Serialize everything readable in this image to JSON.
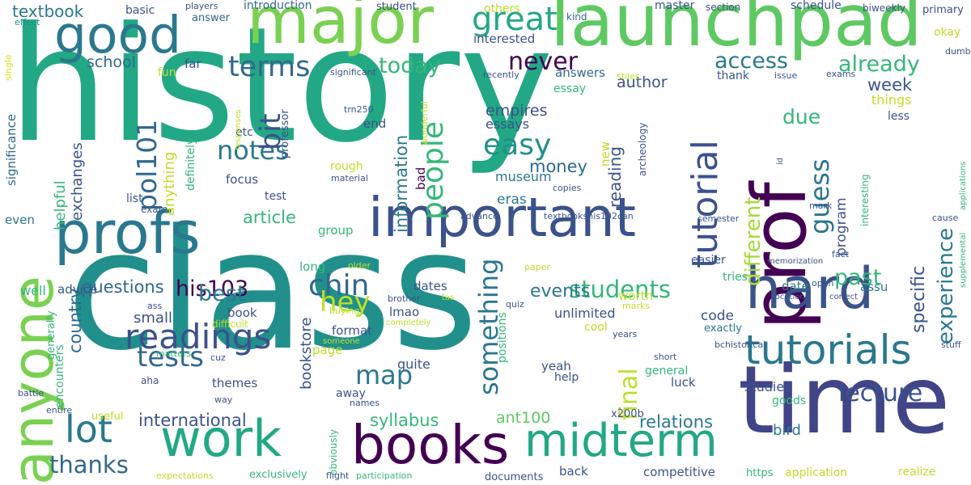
{
  "wordcloud": {
    "words": [
      {
        "text": "history",
        "color": "#22a884"
      },
      {
        "text": "class",
        "color": "#21908c"
      },
      {
        "text": "time",
        "color": "#414487"
      },
      {
        "text": "launchpad",
        "color": "#5ec962"
      },
      {
        "text": "major",
        "color": "#7ad151"
      },
      {
        "text": "prof",
        "color": "#440154"
      },
      {
        "text": "profs",
        "color": "#2a788e"
      },
      {
        "text": "important",
        "color": "#3b528b"
      },
      {
        "text": "good",
        "color": "#2a788e"
      },
      {
        "text": "anyone",
        "color": "#7ad151"
      },
      {
        "text": "hard",
        "color": "#3b528b"
      },
      {
        "text": "work",
        "color": "#22a884"
      },
      {
        "text": "books",
        "color": "#440154"
      },
      {
        "text": "midterm",
        "color": "#22a884"
      },
      {
        "text": "tutorials",
        "color": "#2a788e"
      },
      {
        "text": "readings",
        "color": "#3b528b"
      },
      {
        "text": "lot",
        "color": "#2a788e"
      },
      {
        "text": "tutorial",
        "color": "#3b528b"
      },
      {
        "text": "great",
        "color": "#22a884"
      },
      {
        "text": "terms",
        "color": "#31688e"
      },
      {
        "text": "never",
        "color": "#440154"
      },
      {
        "text": "notes",
        "color": "#2a788e"
      },
      {
        "text": "easy",
        "color": "#21908c"
      },
      {
        "text": "people",
        "color": "#35b779"
      },
      {
        "text": "chin",
        "color": "#31688e"
      },
      {
        "text": "hey",
        "color": "#bddf26"
      },
      {
        "text": "tests",
        "color": "#31688e"
      },
      {
        "text": "thanks",
        "color": "#31688e"
      },
      {
        "text": "lecture",
        "color": "#3b528b"
      },
      {
        "text": "final",
        "color": "#bddf26"
      },
      {
        "text": "students",
        "color": "#35b779"
      },
      {
        "text": "something",
        "color": "#2a788e"
      },
      {
        "text": "access",
        "color": "#2a788e"
      },
      {
        "text": "already",
        "color": "#35b779"
      },
      {
        "text": "guess",
        "color": "#2a788e"
      },
      {
        "text": "his103",
        "color": "#440154"
      },
      {
        "text": "pol101",
        "color": "#31688e"
      },
      {
        "text": "experience",
        "color": "#2a788e"
      },
      {
        "text": "bit",
        "color": "#3b528b"
      },
      {
        "text": "today",
        "color": "#35b779"
      },
      {
        "text": "textbook",
        "color": "#2a788e"
      },
      {
        "text": "map",
        "color": "#2a788e"
      },
      {
        "text": "past",
        "color": "#35b779"
      },
      {
        "text": "best",
        "color": "#2a788e"
      },
      {
        "text": "different",
        "color": "#a5db36"
      },
      {
        "text": "international",
        "color": "#3b528b"
      },
      {
        "text": "specific",
        "color": "#3b528b"
      },
      {
        "text": "due",
        "color": "#35b779"
      },
      {
        "text": "information",
        "color": "#2a788e"
      },
      {
        "text": "questions",
        "color": "#31688e"
      },
      {
        "text": "country",
        "color": "#31688e"
      },
      {
        "text": "events",
        "color": "#2a788e"
      },
      {
        "text": "syllabus",
        "color": "#35b779"
      },
      {
        "text": "relations",
        "color": "#2a788e"
      },
      {
        "text": "article",
        "color": "#35b779"
      },
      {
        "text": "week",
        "color": "#3b528b"
      },
      {
        "text": "reading",
        "color": "#3b528b"
      },
      {
        "text": "money",
        "color": "#31688e"
      },
      {
        "text": "empires",
        "color": "#3b528b"
      },
      {
        "text": "author",
        "color": "#3b528b"
      },
      {
        "text": "school",
        "color": "#31688e"
      },
      {
        "text": "exchanges",
        "color": "#3b528b"
      },
      {
        "text": "helpful",
        "color": "#35b779"
      },
      {
        "text": "anything",
        "color": "#bddf26"
      },
      {
        "text": "program",
        "color": "#3b528b"
      },
      {
        "text": "small",
        "color": "#3b528b"
      },
      {
        "text": "code",
        "color": "#3b528b"
      },
      {
        "text": "bookstore",
        "color": "#3b528b"
      },
      {
        "text": "ant100",
        "color": "#5ec962"
      },
      {
        "text": "bird",
        "color": "#2a788e"
      },
      {
        "text": "unlimited",
        "color": "#3b528b"
      },
      {
        "text": "answers",
        "color": "#31688e"
      },
      {
        "text": "museum",
        "color": "#2a788e"
      },
      {
        "text": "interested",
        "color": "#3b528b"
      },
      {
        "text": "introduction",
        "color": "#31688e"
      },
      {
        "text": "basic",
        "color": "#3b528b"
      },
      {
        "text": "answer",
        "color": "#31688e"
      },
      {
        "text": "master",
        "color": "#3b528b"
      },
      {
        "text": "schedule",
        "color": "#3b528b"
      },
      {
        "text": "biweekly",
        "color": "#3b528b"
      },
      {
        "text": "primary",
        "color": "#3b528b"
      },
      {
        "text": "okay",
        "color": "#bddf26"
      },
      {
        "text": "others",
        "color": "#bddf26"
      },
      {
        "text": "student",
        "color": "#3b528b"
      },
      {
        "text": "section",
        "color": "#3b528b"
      },
      {
        "text": "kind",
        "color": "#31688e"
      },
      {
        "text": "players",
        "color": "#3b528b"
      },
      {
        "text": "effect",
        "color": "#21908c"
      },
      {
        "text": "single",
        "color": "#d8e219"
      },
      {
        "text": "significance",
        "color": "#31688e"
      },
      {
        "text": "fun",
        "color": "#bddf26"
      },
      {
        "text": "far",
        "color": "#3b528b"
      },
      {
        "text": "significant",
        "color": "#3b528b"
      },
      {
        "text": "recently",
        "color": "#3b528b"
      },
      {
        "text": "essay",
        "color": "#35b779"
      },
      {
        "text": "stiles",
        "color": "#bddf26"
      },
      {
        "text": "issue",
        "color": "#3b528b"
      },
      {
        "text": "exams",
        "color": "#3b528b"
      },
      {
        "text": "thank",
        "color": "#3b528b"
      },
      {
        "text": "etc",
        "color": "#3b528b"
      },
      {
        "text": "dumb",
        "color": "#3b528b"
      },
      {
        "text": "things",
        "color": "#bddf26"
      },
      {
        "text": "less",
        "color": "#3b528b"
      },
      {
        "text": "essays",
        "color": "#3b528b"
      },
      {
        "text": "end",
        "color": "#3b528b"
      },
      {
        "text": "trn250",
        "color": "#3b528b"
      },
      {
        "text": "wonderful",
        "color": "#bddf26"
      },
      {
        "text": "professor",
        "color": "#3b528b"
      },
      {
        "text": "responses",
        "color": "#bddf26"
      },
      {
        "text": "definitely",
        "color": "#35b779"
      },
      {
        "text": "focus",
        "color": "#3b528b"
      },
      {
        "text": "material",
        "color": "#3b528b"
      },
      {
        "text": "rough",
        "color": "#bddf26"
      },
      {
        "text": "new",
        "color": "#bddf26"
      },
      {
        "text": "archeology",
        "color": "#3b528b"
      },
      {
        "text": "id",
        "color": "#3b528b"
      },
      {
        "text": "bad",
        "color": "#440154"
      },
      {
        "text": "copies",
        "color": "#3b528b"
      },
      {
        "text": "test",
        "color": "#3b528b"
      },
      {
        "text": "list",
        "color": "#3b528b"
      },
      {
        "text": "exam",
        "color": "#3b528b"
      },
      {
        "text": "eras",
        "color": "#2a788e"
      },
      {
        "text": "advance",
        "color": "#3b528b"
      },
      {
        "text": "textbookshis102can",
        "color": "#3b528b"
      },
      {
        "text": "mark",
        "color": "#3b528b"
      },
      {
        "text": "semester",
        "color": "#3b528b"
      },
      {
        "text": "interesting",
        "color": "#35b779"
      },
      {
        "text": "cause",
        "color": "#3b528b"
      },
      {
        "text": "supplemental",
        "color": "#35b779"
      },
      {
        "text": "applications",
        "color": "#35b779"
      },
      {
        "text": "even",
        "color": "#2a788e"
      },
      {
        "text": "group",
        "color": "#35b779"
      },
      {
        "text": "long",
        "color": "#35b779"
      },
      {
        "text": "older",
        "color": "#bddf26"
      },
      {
        "text": "paper",
        "color": "#bddf26"
      },
      {
        "text": "easier",
        "color": "#3b528b"
      },
      {
        "text": "tries",
        "color": "#35b779"
      },
      {
        "text": "fact",
        "color": "#3b528b"
      },
      {
        "text": "memorization",
        "color": "#3b528b"
      },
      {
        "text": "dates",
        "color": "#3b528b"
      },
      {
        "text": "open",
        "color": "#3b528b"
      },
      {
        "text": "well",
        "color": "#35b779"
      },
      {
        "text": "advice",
        "color": "#3b528b"
      },
      {
        "text": "brother",
        "color": "#3b528b"
      },
      {
        "text": "tas",
        "color": "#bddf26"
      },
      {
        "text": "generally",
        "color": "#35b779"
      },
      {
        "text": "ass",
        "color": "#3b528b"
      },
      {
        "text": "buying",
        "color": "#bddf26"
      },
      {
        "text": "quiz",
        "color": "#3b528b"
      },
      {
        "text": "marks",
        "color": "#bddf26"
      },
      {
        "text": "date",
        "color": "#2a788e"
      },
      {
        "text": "assu",
        "color": "#2a788e"
      },
      {
        "text": "location",
        "color": "#3b528b"
      },
      {
        "text": "correct",
        "color": "#3b528b"
      },
      {
        "text": "worth",
        "color": "#bddf26"
      },
      {
        "text": "book",
        "color": "#3b528b"
      },
      {
        "text": "lmao",
        "color": "#3b528b"
      },
      {
        "text": "difficult",
        "color": "#bddf26"
      },
      {
        "text": "completely",
        "color": "#bddf26"
      },
      {
        "text": "format",
        "color": "#3b528b"
      },
      {
        "text": "cool",
        "color": "#bddf26"
      },
      {
        "text": "years",
        "color": "#3b528b"
      },
      {
        "text": "exactly",
        "color": "#2a788e"
      },
      {
        "text": "someone",
        "color": "#bddf26"
      },
      {
        "text": "positions",
        "color": "#35b779"
      },
      {
        "text": "short",
        "color": "#3b528b"
      },
      {
        "text": "bchistorical",
        "color": "#3b528b"
      },
      {
        "text": "stuff",
        "color": "#3b528b"
      },
      {
        "text": "encounters",
        "color": "#35b779"
      },
      {
        "text": "matters",
        "color": "#35b779"
      },
      {
        "text": "cuz",
        "color": "#3b528b"
      },
      {
        "text": "page",
        "color": "#bddf26"
      },
      {
        "text": "quite",
        "color": "#3b528b"
      },
      {
        "text": "yeah",
        "color": "#3b528b"
      },
      {
        "text": "general",
        "color": "#35b779"
      },
      {
        "text": "luck",
        "color": "#3b528b"
      },
      {
        "text": "help",
        "color": "#3b528b"
      },
      {
        "text": "aha",
        "color": "#3b528b"
      },
      {
        "text": "themes",
        "color": "#3b528b"
      },
      {
        "text": "away",
        "color": "#3b528b"
      },
      {
        "text": "studies",
        "color": "#3b528b"
      },
      {
        "text": "battle",
        "color": "#3b528b"
      },
      {
        "text": "way",
        "color": "#3b528b"
      },
      {
        "text": "names",
        "color": "#3b528b"
      },
      {
        "text": "goods",
        "color": "#35b779"
      },
      {
        "text": "entire",
        "color": "#3b528b"
      },
      {
        "text": "useful",
        "color": "#bddf26"
      },
      {
        "text": "x200b",
        "color": "#3b528b"
      },
      {
        "text": "obviously",
        "color": "#35b779"
      },
      {
        "text": "exclusively",
        "color": "#35b779"
      },
      {
        "text": "expectations",
        "color": "#bddf26"
      },
      {
        "text": "flight",
        "color": "#3b528b"
      },
      {
        "text": "participation",
        "color": "#35b779"
      },
      {
        "text": "documents",
        "color": "#3b528b"
      },
      {
        "text": "back",
        "color": "#3b528b"
      },
      {
        "text": "competitive",
        "color": "#3b528b"
      },
      {
        "text": "https",
        "color": "#35b779"
      },
      {
        "text": "application",
        "color": "#bddf26"
      },
      {
        "text": "realize",
        "color": "#bddf26"
      }
    ]
  }
}
